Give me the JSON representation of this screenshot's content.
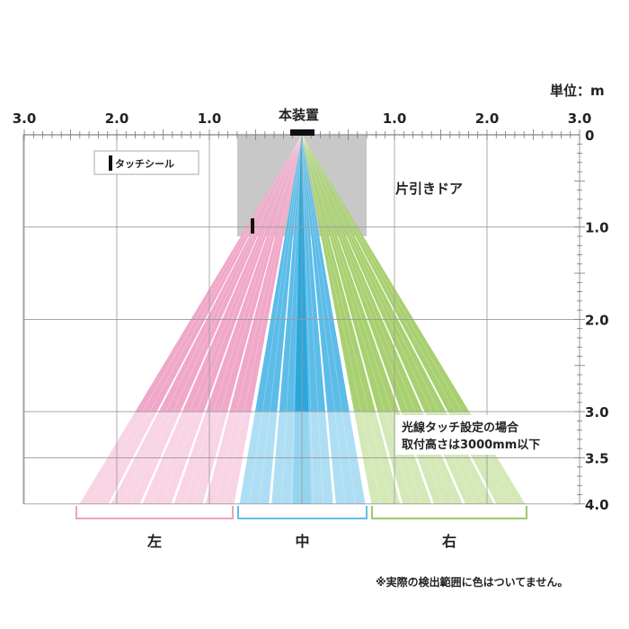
{
  "unit_label": "単位：m",
  "device_label": "本装置",
  "legend": {
    "label": "タッチシール"
  },
  "door_label": "片引きドア",
  "note_lines": [
    "光線タッチ設定の場合",
    "取付高さは3000mm以下"
  ],
  "footnote": "※実際の検出範囲に色はついてません。",
  "x_ticks": [
    "3.0",
    "2.0",
    "1.0",
    "1.0",
    "2.0",
    "3.0"
  ],
  "y_ticks": [
    "0",
    "1.0",
    "2.0",
    "3.0",
    "3.5",
    "4.0"
  ],
  "zones": [
    {
      "label": "左",
      "color": "#f0a8c8",
      "light": "#f8d6e6",
      "bracket": "#f0a0c0"
    },
    {
      "label": "中",
      "color": "#5cbce8",
      "light": "#b8e0f6",
      "bracket": "#60c0e8"
    },
    {
      "label": "右",
      "color": "#a8d070",
      "light": "#d6eab8",
      "bracket": "#98cc68"
    }
  ],
  "colors": {
    "grid": "#999999",
    "device_area": "#c8c8c8",
    "text": "#222222"
  }
}
